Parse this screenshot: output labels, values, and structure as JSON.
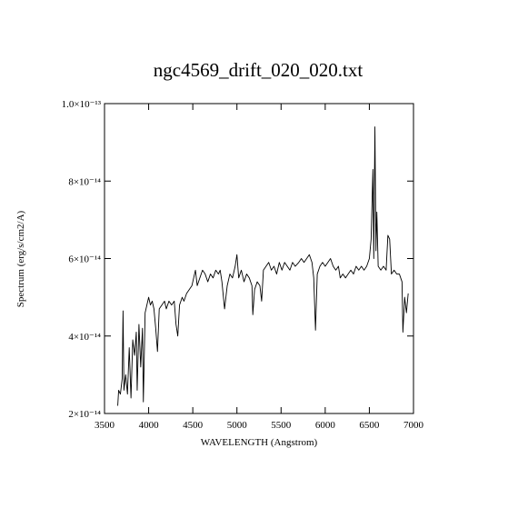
{
  "chart_data": {
    "type": "line",
    "title": "ngc4569_drift_020_020.txt",
    "x_label": "WAVELENGTH (Angstrom)",
    "y_label": "Spectrum (erg/s/cm2/A)",
    "xlim": [
      3500,
      7000
    ],
    "xticks": [
      3500,
      4000,
      4500,
      5000,
      5500,
      6000,
      6500,
      7000
    ],
    "ylim": [
      2e-14,
      1e-13
    ],
    "yticks": [
      {
        "value": 2e-14,
        "label": "2×10⁻¹⁴"
      },
      {
        "value": 4e-14,
        "label": "4×10⁻¹⁴"
      },
      {
        "value": 6e-14,
        "label": "6×10⁻¹⁴"
      },
      {
        "value": 8e-14,
        "label": "8×10⁻¹⁴"
      },
      {
        "value": 1e-13,
        "label": "1.0×10⁻¹³"
      }
    ],
    "grid": false,
    "series": [
      {
        "color": "#000000",
        "x": [
          3650,
          3660,
          3680,
          3700,
          3710,
          3720,
          3740,
          3760,
          3780,
          3800,
          3820,
          3840,
          3860,
          3870,
          3890,
          3910,
          3930,
          3940,
          3960,
          3980,
          4000,
          4020,
          4040,
          4060,
          4080,
          4100,
          4120,
          4150,
          4180,
          4200,
          4230,
          4260,
          4290,
          4310,
          4330,
          4350,
          4380,
          4400,
          4430,
          4460,
          4490,
          4510,
          4530,
          4550,
          4580,
          4610,
          4640,
          4670,
          4700,
          4730,
          4760,
          4790,
          4810,
          4830,
          4860,
          4890,
          4920,
          4950,
          4980,
          5000,
          5020,
          5050,
          5080,
          5110,
          5140,
          5170,
          5180,
          5200,
          5230,
          5260,
          5280,
          5300,
          5330,
          5360,
          5390,
          5420,
          5450,
          5480,
          5510,
          5540,
          5570,
          5600,
          5630,
          5660,
          5700,
          5730,
          5760,
          5790,
          5820,
          5850,
          5870,
          5890,
          5910,
          5940,
          5970,
          6000,
          6030,
          6060,
          6090,
          6120,
          6150,
          6170,
          6200,
          6230,
          6260,
          6290,
          6320,
          6350,
          6380,
          6410,
          6440,
          6470,
          6500,
          6520,
          6540,
          6550,
          6563,
          6575,
          6585,
          6600,
          6630,
          6660,
          6690,
          6710,
          6730,
          6750,
          6780,
          6810,
          6840,
          6870,
          6880,
          6900,
          6920,
          6940
        ],
        "values": [
          2.2e-14,
          2.6e-14,
          2.5e-14,
          2.9e-14,
          4.65e-14,
          2.6e-14,
          3e-14,
          2.5e-14,
          3.7e-14,
          2.4e-14,
          3.9e-14,
          3.5e-14,
          4.1e-14,
          2.6e-14,
          4.3e-14,
          3.2e-14,
          4.2e-14,
          2.3e-14,
          4.6e-14,
          4.8e-14,
          5e-14,
          4.8e-14,
          4.9e-14,
          4.7e-14,
          4.2e-14,
          3.6e-14,
          4.7e-14,
          4.8e-14,
          4.9e-14,
          4.7e-14,
          4.9e-14,
          4.8e-14,
          4.9e-14,
          4.3e-14,
          4e-14,
          4.8e-14,
          5e-14,
          4.9e-14,
          5.1e-14,
          5.2e-14,
          5.3e-14,
          5.5e-14,
          5.7e-14,
          5.3e-14,
          5.5e-14,
          5.7e-14,
          5.6e-14,
          5.4e-14,
          5.6e-14,
          5.5e-14,
          5.7e-14,
          5.6e-14,
          5.7e-14,
          5.4e-14,
          4.7e-14,
          5.3e-14,
          5.6e-14,
          5.5e-14,
          5.8e-14,
          6.1e-14,
          5.5e-14,
          5.7e-14,
          5.4e-14,
          5.6e-14,
          5.5e-14,
          5.3e-14,
          4.55e-14,
          5.2e-14,
          5.4e-14,
          5.3e-14,
          4.9e-14,
          5.7e-14,
          5.8e-14,
          5.9e-14,
          5.7e-14,
          5.8e-14,
          5.6e-14,
          5.9e-14,
          5.7e-14,
          5.9e-14,
          5.8e-14,
          5.7e-14,
          5.9e-14,
          5.8e-14,
          5.9e-14,
          6e-14,
          5.9e-14,
          6e-14,
          6.1e-14,
          5.9e-14,
          5.5e-14,
          4.15e-14,
          5.6e-14,
          5.8e-14,
          5.9e-14,
          5.8e-14,
          5.9e-14,
          6e-14,
          5.8e-14,
          5.7e-14,
          5.8e-14,
          5.5e-14,
          5.6e-14,
          5.5e-14,
          5.6e-14,
          5.7e-14,
          5.6e-14,
          5.8e-14,
          5.7e-14,
          5.8e-14,
          5.7e-14,
          5.8e-14,
          6e-14,
          6.5e-14,
          8.3e-14,
          6e-14,
          9.4e-14,
          6.2e-14,
          7.2e-14,
          5.8e-14,
          5.7e-14,
          5.8e-14,
          5.7e-14,
          6.6e-14,
          6.5e-14,
          5.6e-14,
          5.7e-14,
          5.6e-14,
          5.6e-14,
          5.4e-14,
          4.1e-14,
          5e-14,
          4.6e-14,
          5.1e-14
        ]
      }
    ]
  }
}
